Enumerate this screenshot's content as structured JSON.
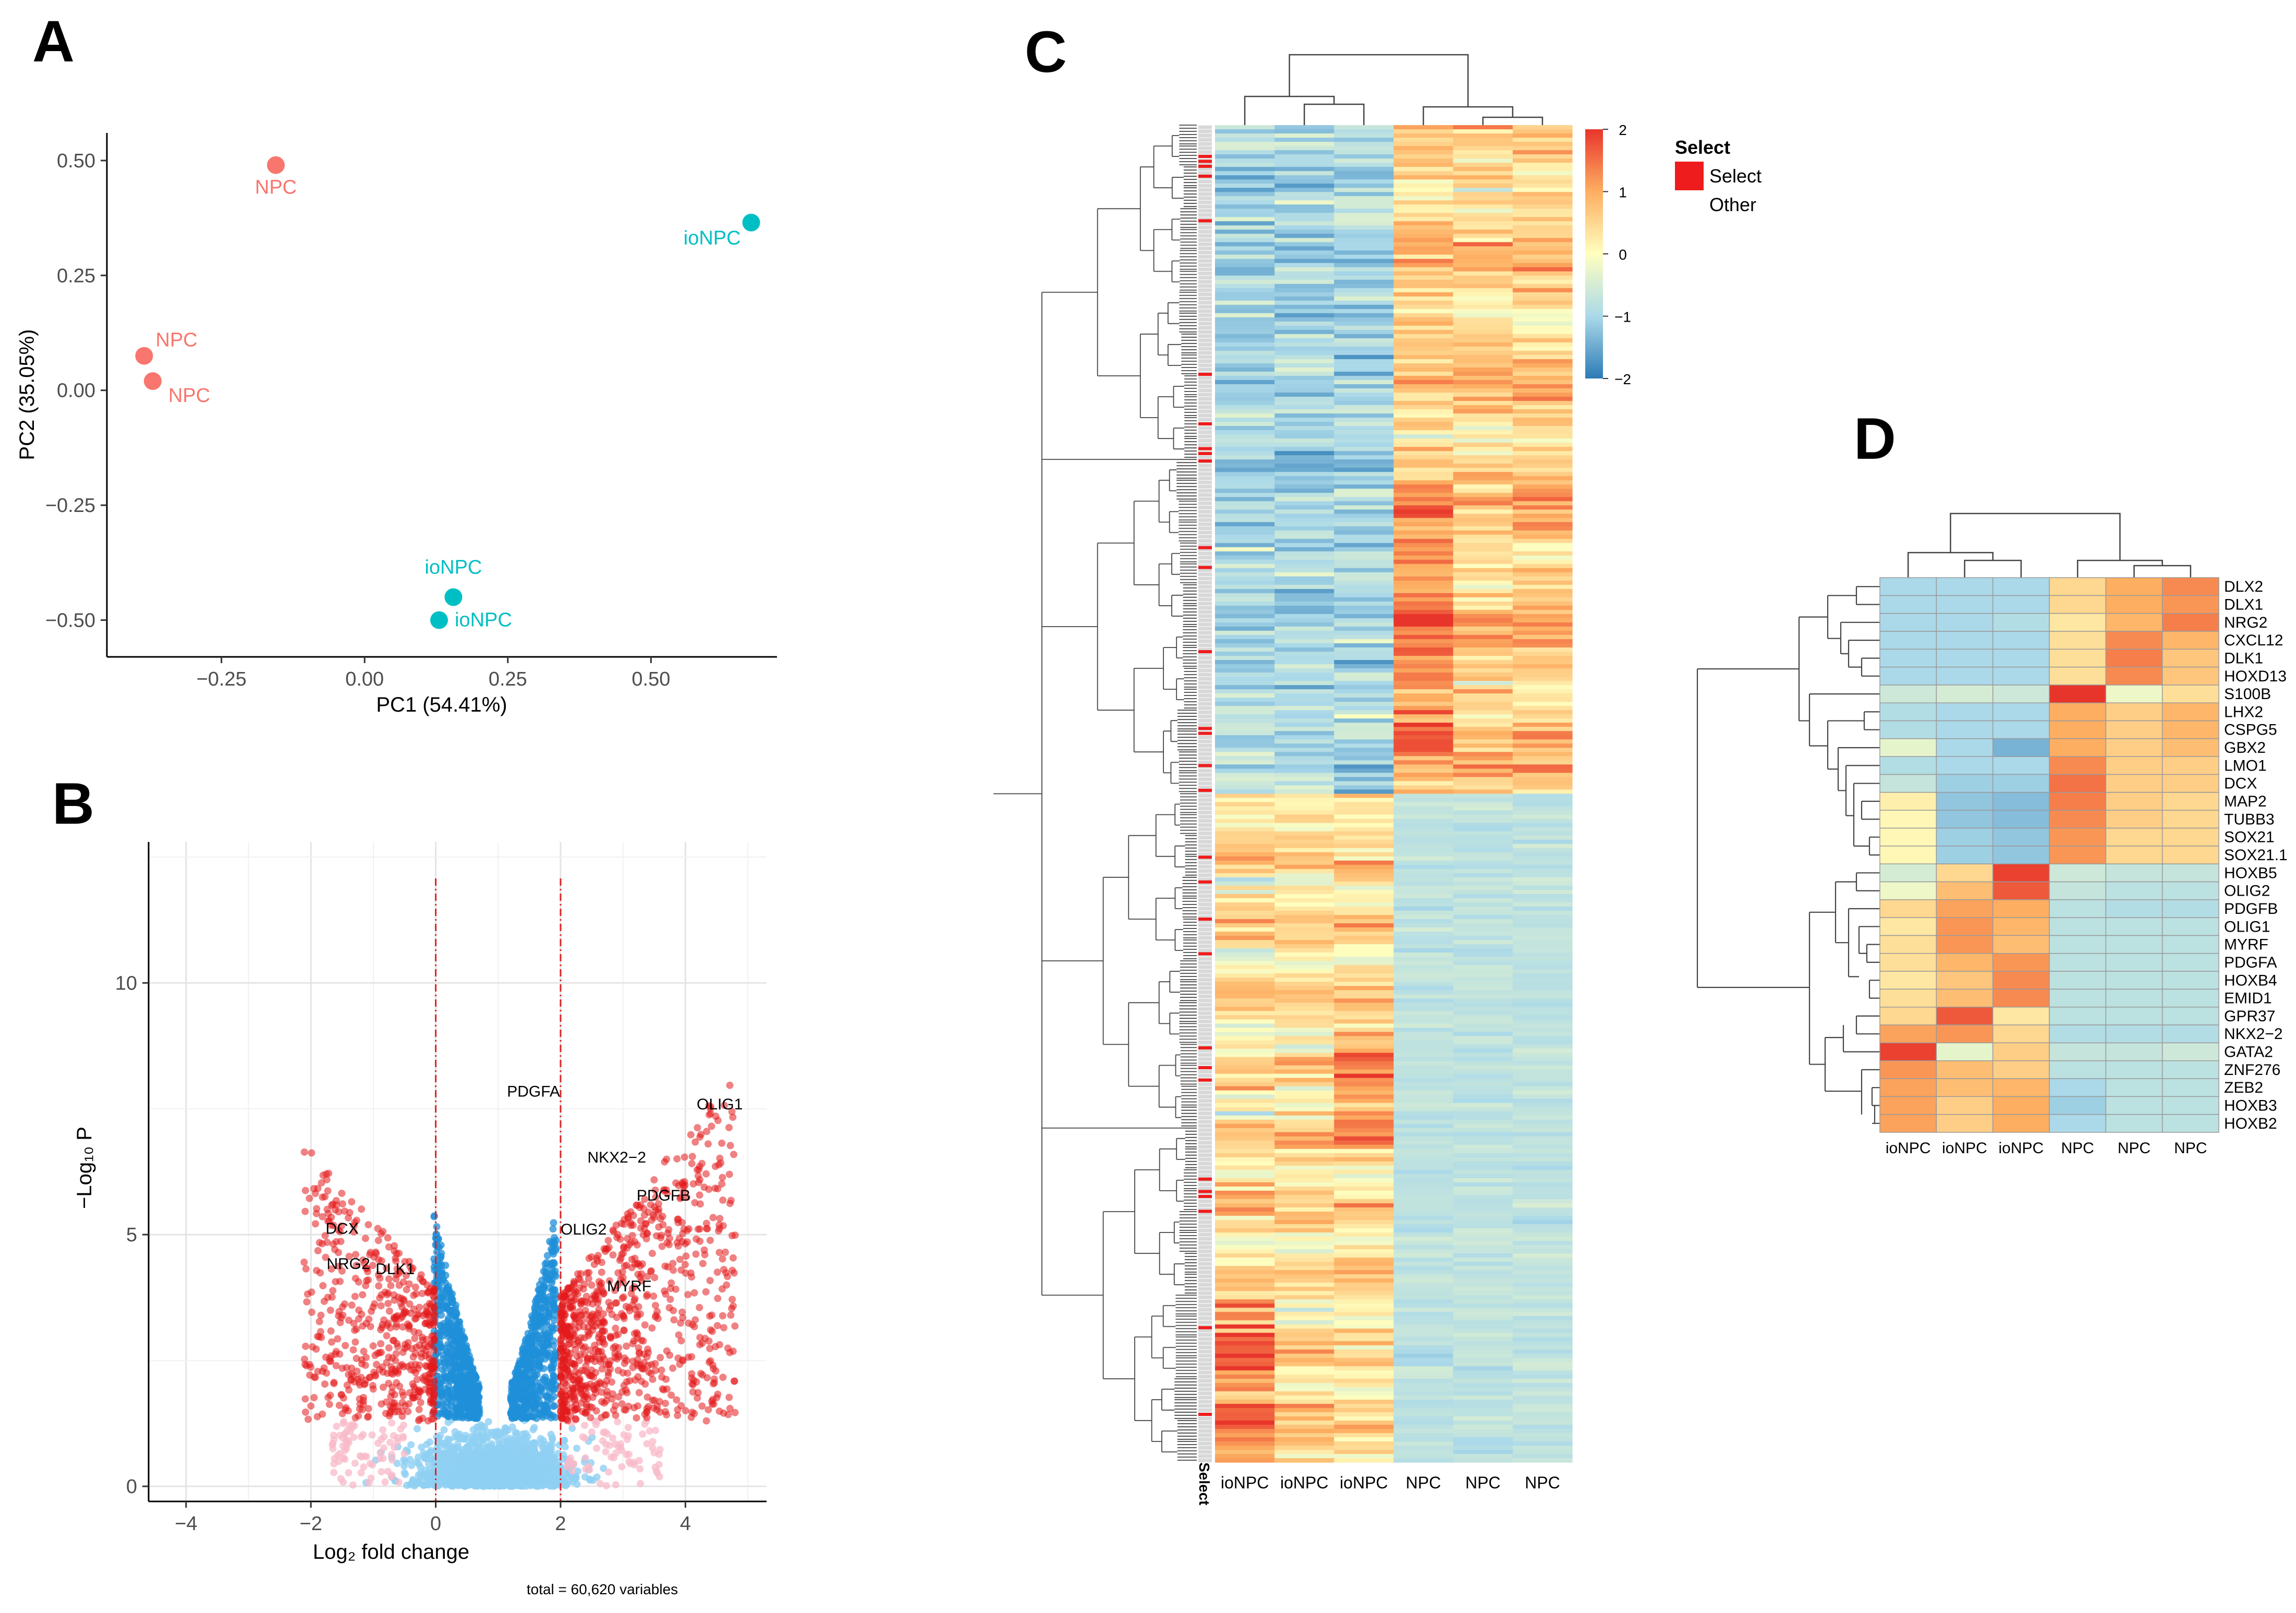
{
  "panels": {
    "A": "A",
    "B": "B",
    "C": "C",
    "D": "D"
  },
  "colors": {
    "npc": "#f8766d",
    "ionpc": "#00bfc4",
    "red": "#e41a1c",
    "blue": "#1f8fd8",
    "lightblue": "#8fd0f3",
    "pink": "#f8b9c8",
    "heat_low": "#2c7bb6",
    "heat_mid": "#ffffbf",
    "heat_high": "#e8352b"
  },
  "chart_data": [
    {
      "id": "A",
      "type": "scatter",
      "title": "",
      "xlabel": "PC1 (54.41%)",
      "ylabel": "PC2 (35.05%)",
      "xlim": [
        -0.45,
        0.72
      ],
      "ylim": [
        -0.58,
        0.56
      ],
      "xticks": [
        -0.25,
        0.0,
        0.25,
        0.5
      ],
      "xtick_labels": [
        "−0.25",
        "0.00",
        "0.25",
        "0.50"
      ],
      "yticks": [
        -0.5,
        -0.25,
        0.0,
        0.25,
        0.5
      ],
      "ytick_labels": [
        "−0.50",
        "−0.25",
        "0.00",
        "0.25",
        "0.50"
      ],
      "points": [
        {
          "label": "NPC",
          "group": "NPC",
          "x": -0.155,
          "y": 0.49
        },
        {
          "label": "NPC",
          "group": "NPC",
          "x": -0.385,
          "y": 0.075
        },
        {
          "label": "NPC",
          "group": "NPC",
          "x": -0.37,
          "y": 0.02
        },
        {
          "label": "ioNPC",
          "group": "ioNPC",
          "x": 0.675,
          "y": 0.365
        },
        {
          "label": "ioNPC",
          "group": "ioNPC",
          "x": 0.155,
          "y": -0.45
        },
        {
          "label": "ioNPC",
          "group": "ioNPC",
          "x": 0.13,
          "y": -0.5
        }
      ]
    },
    {
      "id": "B",
      "type": "scatter",
      "title": "",
      "xlabel": "Log₂ fold change",
      "ylabel": "−Log₁₀ P",
      "caption": "total = 60,620 variables",
      "xlim": [
        -4.6,
        5.3
      ],
      "ylim": [
        -0.3,
        12.8
      ],
      "xticks": [
        -4,
        -2,
        0,
        2,
        4
      ],
      "xtick_labels": [
        "−4",
        "−2",
        "0",
        "2",
        "4"
      ],
      "yticks": [
        0,
        5,
        10
      ],
      "ytick_labels": [
        "0",
        "5",
        "10"
      ],
      "fc_cutoffs": [
        0,
        2
      ],
      "labeled_genes": [
        {
          "gene": "PDGFA",
          "x": 1.65,
          "y": 7.45
        },
        {
          "gene": "NKX2−2",
          "x": 2.9,
          "y": 7.0
        },
        {
          "gene": "OLIG1",
          "x": 4.55,
          "y": 7.2
        },
        {
          "gene": "PDGFB",
          "x": 3.65,
          "y": 5.8
        },
        {
          "gene": "OLIG2",
          "x": 2.0,
          "y": 5.0
        },
        {
          "gene": "MYRF",
          "x": 3.1,
          "y": 4.0
        },
        {
          "gene": "DCX",
          "x": -1.5,
          "y": 5.1
        },
        {
          "gene": "NRG2",
          "x": -1.4,
          "y": 4.4
        },
        {
          "gene": "DLK1",
          "x": -0.65,
          "y": 4.3
        }
      ]
    },
    {
      "id": "C",
      "type": "heatmap",
      "columns": [
        "ioNPC",
        "ioNPC",
        "ioNPC",
        "NPC",
        "NPC",
        "NPC"
      ],
      "row_annotation_title": "Select",
      "legend_title": "Select",
      "legend_items": [
        "Select",
        "Other"
      ],
      "scale_ticks": [
        2,
        1,
        0,
        -1,
        -2
      ],
      "scale_tick_labels": [
        "2",
        "1",
        "0",
        "−1",
        "−2"
      ]
    },
    {
      "id": "D",
      "type": "heatmap",
      "columns": [
        "ioNPC",
        "ioNPC",
        "ioNPC",
        "NPC",
        "NPC",
        "NPC"
      ],
      "rows": [
        {
          "gene": "DLX2",
          "values": [
            -1.0,
            -1.0,
            -1.0,
            0.5,
            1.0,
            1.3
          ]
        },
        {
          "gene": "DLX1",
          "values": [
            -1.0,
            -1.0,
            -1.0,
            0.5,
            1.0,
            1.2
          ]
        },
        {
          "gene": "NRG2",
          "values": [
            -1.0,
            -1.0,
            -0.9,
            0.3,
            0.9,
            1.4
          ]
        },
        {
          "gene": "CXCL12",
          "values": [
            -1.0,
            -1.0,
            -1.0,
            0.4,
            1.3,
            0.9
          ]
        },
        {
          "gene": "DLK1",
          "values": [
            -1.0,
            -1.0,
            -1.0,
            0.4,
            1.4,
            0.7
          ]
        },
        {
          "gene": "HOXD13",
          "values": [
            -1.0,
            -1.0,
            -1.0,
            0.4,
            1.3,
            0.7
          ]
        },
        {
          "gene": "S100B",
          "values": [
            -0.6,
            -0.5,
            -0.6,
            2.0,
            -0.2,
            0.4
          ]
        },
        {
          "gene": "LHX2",
          "values": [
            -0.9,
            -1.0,
            -1.0,
            1.0,
            0.6,
            0.9
          ]
        },
        {
          "gene": "CSPG5",
          "values": [
            -0.9,
            -1.0,
            -1.0,
            1.0,
            0.6,
            0.9
          ]
        },
        {
          "gene": "GBX2",
          "values": [
            -0.3,
            -1.0,
            -1.4,
            1.0,
            0.6,
            0.8
          ]
        },
        {
          "gene": "LMO1",
          "values": [
            -0.9,
            -1.0,
            -1.0,
            1.3,
            0.6,
            0.6
          ]
        },
        {
          "gene": "DCX",
          "values": [
            -0.7,
            -1.1,
            -1.1,
            1.5,
            0.6,
            0.6
          ]
        },
        {
          "gene": "MAP2",
          "values": [
            0.2,
            -1.2,
            -1.3,
            1.4,
            0.6,
            0.5
          ]
        },
        {
          "gene": "TUBB3",
          "values": [
            0.1,
            -1.2,
            -1.3,
            1.3,
            0.6,
            0.5
          ]
        },
        {
          "gene": "SOX21",
          "values": [
            0.1,
            -1.1,
            -1.2,
            1.2,
            0.5,
            0.5
          ]
        },
        {
          "gene": "SOX21.1",
          "values": [
            0.1,
            -1.1,
            -1.2,
            1.2,
            0.5,
            0.5
          ]
        },
        {
          "gene": "HOXB5",
          "values": [
            -0.5,
            0.5,
            1.9,
            -0.6,
            -0.7,
            -0.7
          ]
        },
        {
          "gene": "OLIG2",
          "values": [
            -0.2,
            0.8,
            1.7,
            -0.7,
            -0.8,
            -0.8
          ]
        },
        {
          "gene": "PDGFB",
          "values": [
            0.5,
            1.1,
            1.0,
            -0.8,
            -0.9,
            -0.9
          ]
        },
        {
          "gene": "OLIG1",
          "values": [
            0.3,
            1.2,
            0.9,
            -0.8,
            -0.8,
            -0.8
          ]
        },
        {
          "gene": "MYRF",
          "values": [
            0.4,
            1.2,
            0.8,
            -0.8,
            -0.8,
            -0.8
          ]
        },
        {
          "gene": "PDGFA",
          "values": [
            0.4,
            0.9,
            1.2,
            -0.8,
            -0.8,
            -0.8
          ]
        },
        {
          "gene": "HOXB4",
          "values": [
            0.3,
            0.7,
            1.3,
            -0.8,
            -0.8,
            -0.8
          ]
        },
        {
          "gene": "EMID1",
          "values": [
            0.4,
            0.8,
            1.3,
            -0.8,
            -0.8,
            -0.8
          ]
        },
        {
          "gene": "GPR37",
          "values": [
            0.5,
            1.7,
            0.3,
            -0.8,
            -0.8,
            -0.8
          ]
        },
        {
          "gene": "NKX2−2",
          "values": [
            1.1,
            1.2,
            0.5,
            -0.9,
            -0.9,
            -0.9
          ]
        },
        {
          "gene": "GATA2",
          "values": [
            1.9,
            -0.3,
            0.6,
            -0.7,
            -0.7,
            -0.6
          ]
        },
        {
          "gene": "ZNF276",
          "values": [
            1.2,
            0.8,
            0.6,
            -0.8,
            -0.8,
            -0.8
          ]
        },
        {
          "gene": "ZEB2",
          "values": [
            1.1,
            0.8,
            0.9,
            -1.0,
            -0.8,
            -0.8
          ]
        },
        {
          "gene": "HOXB3",
          "values": [
            1.1,
            0.6,
            1.0,
            -1.1,
            -0.8,
            -0.8
          ]
        },
        {
          "gene": "HOXB2",
          "values": [
            1.1,
            0.6,
            1.0,
            -1.0,
            -0.8,
            -0.8
          ]
        }
      ]
    }
  ]
}
